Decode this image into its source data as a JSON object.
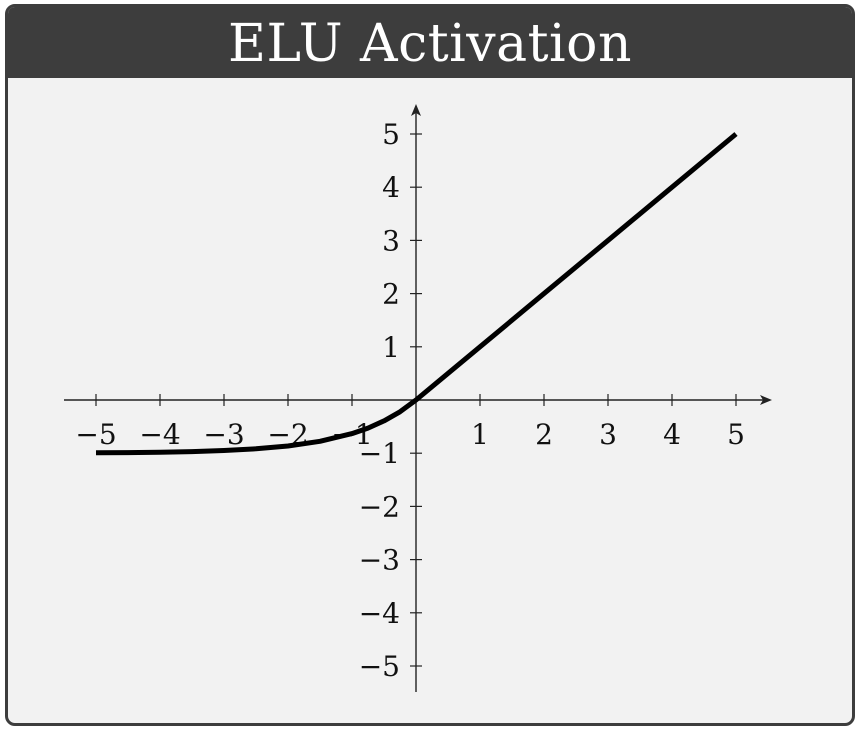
{
  "card": {
    "title": "ELU Activation"
  },
  "chart_data": {
    "type": "line",
    "title": "ELU Activation",
    "xlabel": "",
    "ylabel": "",
    "xlim": [
      -5,
      5
    ],
    "ylim": [
      -5,
      5
    ],
    "x_ticks": [
      -5,
      -4,
      -3,
      -2,
      -1,
      1,
      2,
      3,
      4,
      5
    ],
    "y_ticks": [
      -5,
      -4,
      -3,
      -2,
      -1,
      1,
      2,
      3,
      4,
      5
    ],
    "x_tick_labels": [
      "−5",
      "−4",
      "−3",
      "−2",
      "−1",
      "1",
      "2",
      "3",
      "4",
      "5"
    ],
    "y_tick_labels": [
      "−5",
      "−4",
      "−3",
      "−2",
      "−1",
      "1",
      "2",
      "3",
      "4",
      "5"
    ],
    "grid": false,
    "series": [
      {
        "color": "#000000",
        "x": [
          -5,
          -4.5,
          -4,
          -3.5,
          -3,
          -2.5,
          -2,
          -1.5,
          -1,
          -0.75,
          -0.5,
          -0.25,
          0,
          1,
          2,
          3,
          4,
          5
        ],
        "y": [
          -0.993,
          -0.989,
          -0.982,
          -0.97,
          -0.95,
          -0.918,
          -0.865,
          -0.777,
          -0.632,
          -0.528,
          -0.393,
          -0.221,
          0,
          1,
          2,
          3,
          4,
          5
        ]
      }
    ]
  }
}
